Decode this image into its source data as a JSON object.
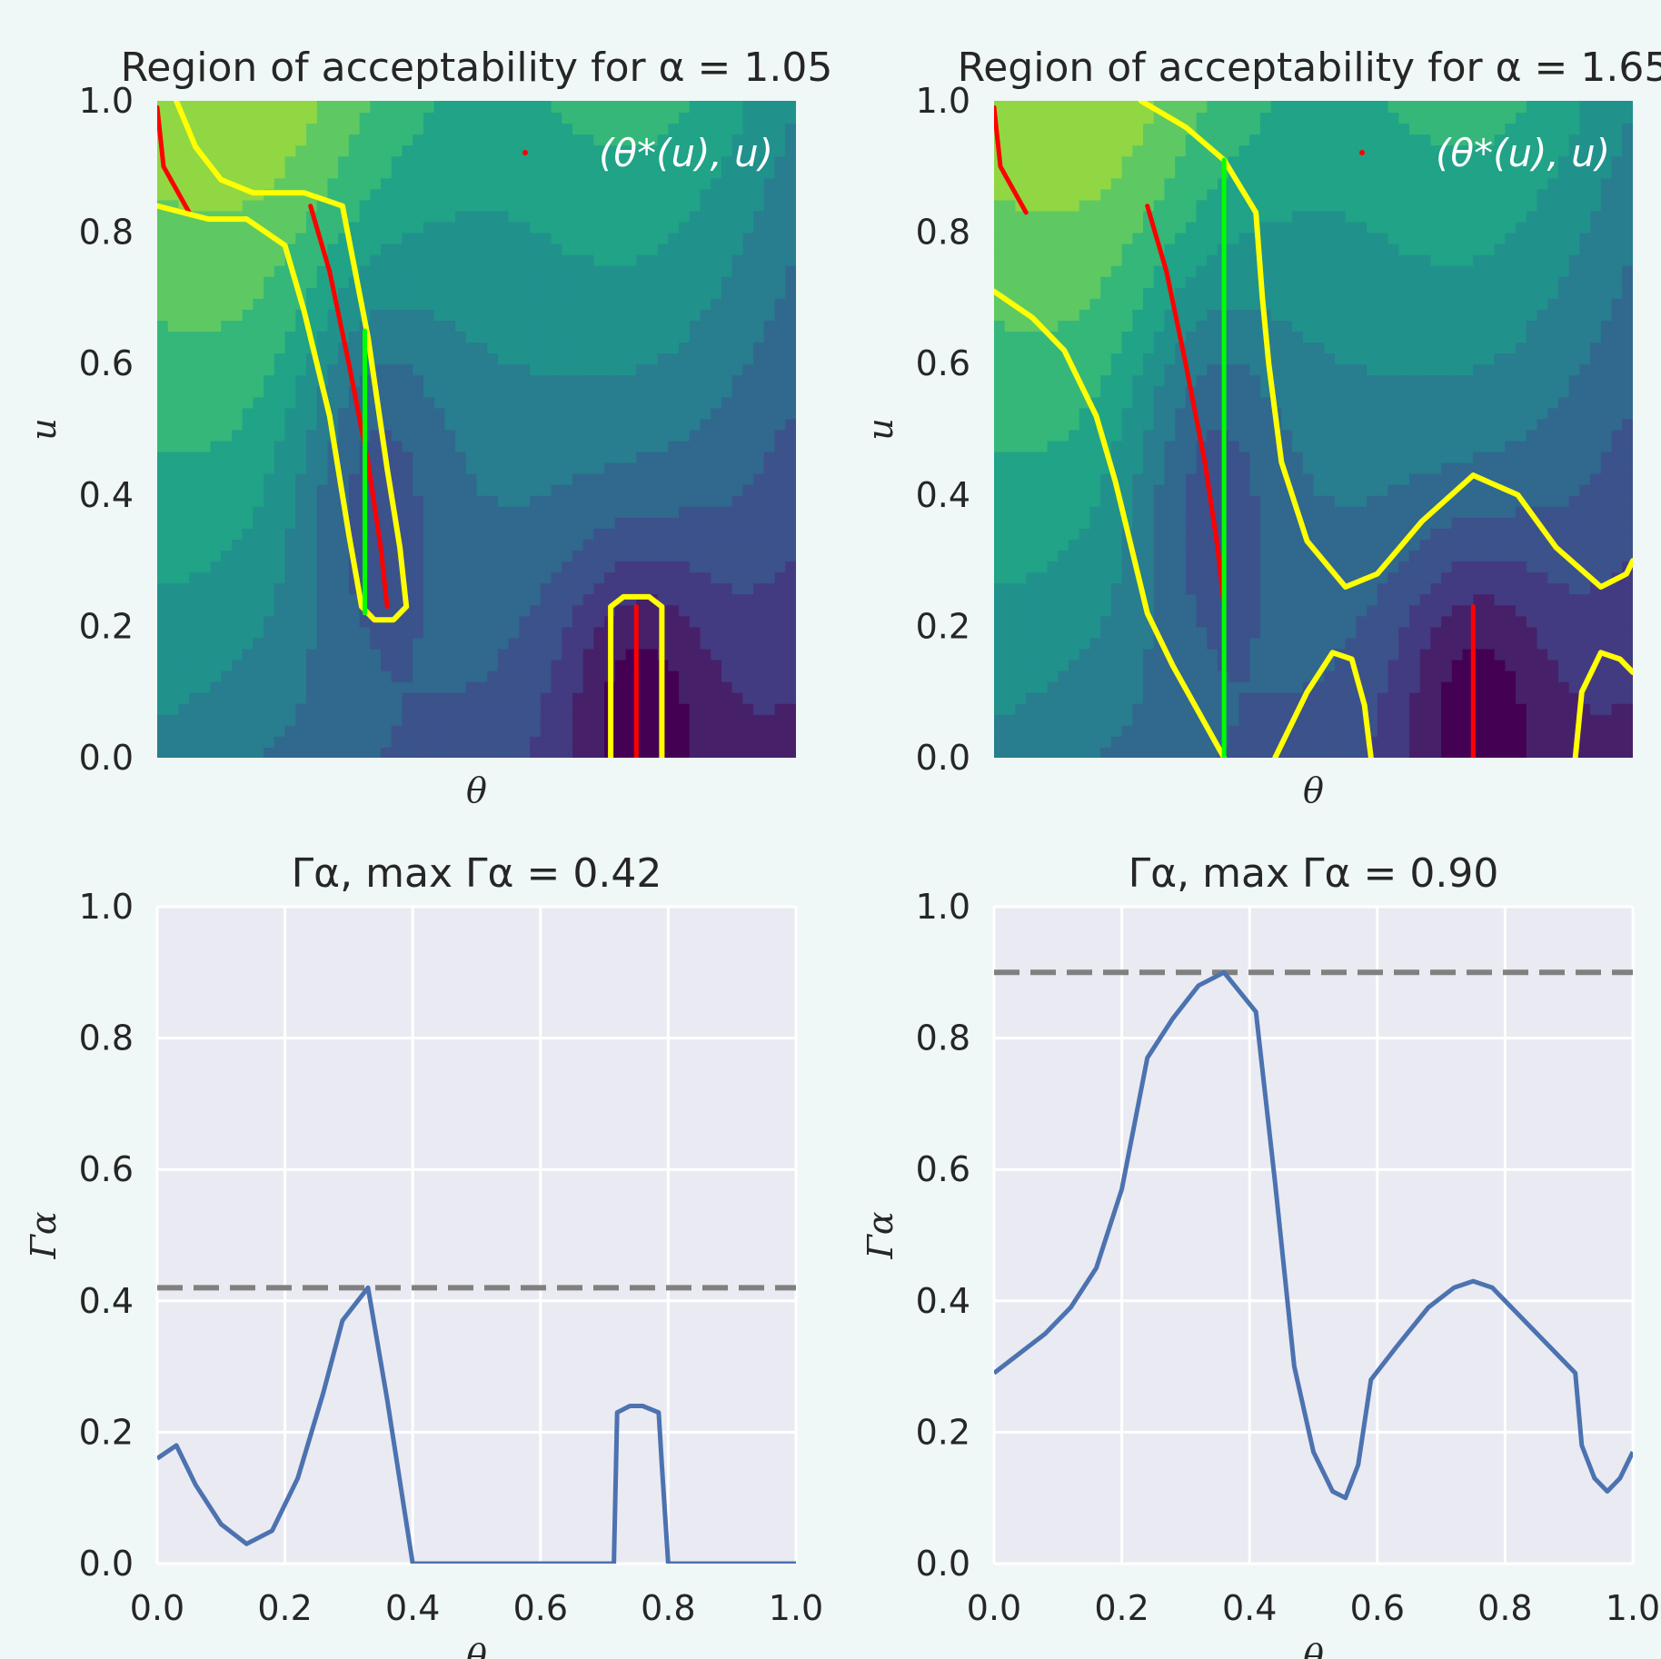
{
  "chart_data": [
    {
      "type": "contour",
      "title": "Region of acceptability for α = 1.05",
      "xlabel": "θ",
      "ylabel": "u",
      "xlim": [
        0,
        1
      ],
      "ylim": [
        0,
        1
      ],
      "yticks": [
        "0.0",
        "0.2",
        "0.4",
        "0.6",
        "0.8",
        "1.0"
      ],
      "xticks_visible": false,
      "colormap": "viridis",
      "annotation": "(θ*(u), u)",
      "alpha": 1.05,
      "series": [
        {
          "color": "#ff0000",
          "points": [
            [
              0.0,
              0.99
            ],
            [
              0.01,
              0.9
            ],
            [
              0.05,
              0.83
            ]
          ]
        },
        {
          "color": "#ff0000",
          "points": [
            [
              0.24,
              0.84
            ],
            [
              0.27,
              0.74
            ],
            [
              0.3,
              0.6
            ],
            [
              0.33,
              0.45
            ],
            [
              0.35,
              0.32
            ],
            [
              0.36,
              0.23
            ]
          ]
        },
        {
          "color": "#ff0000",
          "points": [
            [
              0.75,
              0.23
            ],
            [
              0.75,
              0.0
            ]
          ]
        },
        {
          "color": "#ffff00",
          "points": [
            [
              0.03,
              1.0
            ],
            [
              0.06,
              0.93
            ],
            [
              0.1,
              0.88
            ],
            [
              0.15,
              0.86
            ],
            [
              0.23,
              0.86
            ],
            [
              0.29,
              0.84
            ],
            [
              0.33,
              0.64
            ],
            [
              0.36,
              0.44
            ],
            [
              0.38,
              0.32
            ],
            [
              0.39,
              0.23
            ],
            [
              0.37,
              0.21
            ],
            [
              0.34,
              0.21
            ],
            [
              0.32,
              0.23
            ],
            [
              0.3,
              0.34
            ],
            [
              0.27,
              0.52
            ],
            [
              0.23,
              0.68
            ],
            [
              0.2,
              0.78
            ],
            [
              0.14,
              0.82
            ],
            [
              0.08,
              0.82
            ],
            [
              0.0,
              0.84
            ]
          ]
        },
        {
          "color": "#ffff00",
          "points": [
            [
              0.71,
              0.0
            ],
            [
              0.71,
              0.23
            ],
            [
              0.73,
              0.245
            ],
            [
              0.77,
              0.245
            ],
            [
              0.79,
              0.23
            ],
            [
              0.79,
              0.0
            ]
          ]
        },
        {
          "color": "#00ff00",
          "points": [
            [
              0.325,
              0.65
            ],
            [
              0.325,
              0.22
            ]
          ]
        }
      ]
    },
    {
      "type": "contour",
      "title": "Region of acceptability for α = 1.65",
      "xlabel": "θ",
      "ylabel": "u",
      "xlim": [
        0,
        1
      ],
      "ylim": [
        0,
        1
      ],
      "yticks": [
        "0.0",
        "0.2",
        "0.4",
        "0.6",
        "0.8",
        "1.0"
      ],
      "xticks_visible": false,
      "colormap": "viridis",
      "annotation": "(θ*(u), u)",
      "alpha": 1.65,
      "series": [
        {
          "color": "#ff0000",
          "points": [
            [
              0.0,
              0.99
            ],
            [
              0.01,
              0.9
            ],
            [
              0.05,
              0.83
            ]
          ]
        },
        {
          "color": "#ff0000",
          "points": [
            [
              0.24,
              0.84
            ],
            [
              0.27,
              0.74
            ],
            [
              0.3,
              0.6
            ],
            [
              0.33,
              0.45
            ],
            [
              0.35,
              0.32
            ],
            [
              0.36,
              0.23
            ]
          ]
        },
        {
          "color": "#ff0000",
          "points": [
            [
              0.75,
              0.23
            ],
            [
              0.75,
              0.0
            ]
          ]
        },
        {
          "color": "#ffff00",
          "points": [
            [
              0.23,
              1.0
            ],
            [
              0.3,
              0.96
            ],
            [
              0.36,
              0.91
            ],
            [
              0.41,
              0.83
            ],
            [
              0.42,
              0.7
            ],
            [
              0.43,
              0.6
            ],
            [
              0.45,
              0.45
            ],
            [
              0.49,
              0.33
            ],
            [
              0.55,
              0.26
            ],
            [
              0.6,
              0.28
            ],
            [
              0.67,
              0.36
            ],
            [
              0.75,
              0.43
            ],
            [
              0.82,
              0.4
            ],
            [
              0.88,
              0.32
            ],
            [
              0.95,
              0.26
            ],
            [
              0.99,
              0.28
            ],
            [
              1.0,
              0.3
            ]
          ]
        },
        {
          "color": "#ffff00",
          "points": [
            [
              0.0,
              0.71
            ],
            [
              0.06,
              0.67
            ],
            [
              0.11,
              0.62
            ],
            [
              0.16,
              0.52
            ],
            [
              0.19,
              0.42
            ],
            [
              0.22,
              0.3
            ],
            [
              0.24,
              0.22
            ],
            [
              0.28,
              0.14
            ],
            [
              0.32,
              0.07
            ],
            [
              0.36,
              0.0
            ]
          ]
        },
        {
          "color": "#ffff00",
          "points": [
            [
              0.44,
              0.0
            ],
            [
              0.49,
              0.1
            ],
            [
              0.53,
              0.16
            ],
            [
              0.56,
              0.15
            ],
            [
              0.58,
              0.08
            ],
            [
              0.59,
              0.0
            ]
          ]
        },
        {
          "color": "#ffff00",
          "points": [
            [
              0.91,
              0.0
            ],
            [
              0.92,
              0.1
            ],
            [
              0.95,
              0.16
            ],
            [
              0.98,
              0.15
            ],
            [
              1.0,
              0.13
            ]
          ]
        },
        {
          "color": "#00ff00",
          "points": [
            [
              0.36,
              0.91
            ],
            [
              0.36,
              0.0
            ]
          ]
        }
      ]
    },
    {
      "type": "line",
      "title": "Γα, max Γα = 0.42",
      "xlabel": "θ",
      "ylabel": "Γα",
      "xlim": [
        0,
        1
      ],
      "ylim": [
        0,
        1
      ],
      "xticks": [
        "0.0",
        "0.2",
        "0.4",
        "0.6",
        "0.8",
        "1.0"
      ],
      "yticks": [
        "0.0",
        "0.2",
        "0.4",
        "0.6",
        "0.8",
        "1.0"
      ],
      "grid": true,
      "hline": 0.42,
      "series": [
        {
          "color": "#4c72b0",
          "x": [
            0.0,
            0.03,
            0.06,
            0.1,
            0.14,
            0.18,
            0.22,
            0.26,
            0.29,
            0.33,
            0.36,
            0.4,
            0.6,
            0.715,
            0.72,
            0.74,
            0.76,
            0.785,
            0.79,
            0.8,
            1.0
          ],
          "y": [
            0.16,
            0.18,
            0.12,
            0.06,
            0.03,
            0.05,
            0.13,
            0.26,
            0.37,
            0.42,
            0.25,
            0.0,
            0.0,
            0.0,
            0.23,
            0.24,
            0.24,
            0.23,
            0.15,
            0.0,
            0.0
          ]
        }
      ]
    },
    {
      "type": "line",
      "title": "Γα, max Γα = 0.90",
      "xlabel": "θ",
      "ylabel": "Γα",
      "xlim": [
        0,
        1
      ],
      "ylim": [
        0,
        1
      ],
      "xticks": [
        "0.0",
        "0.2",
        "0.4",
        "0.6",
        "0.8",
        "1.0"
      ],
      "yticks": [
        "0.0",
        "0.2",
        "0.4",
        "0.6",
        "0.8",
        "1.0"
      ],
      "grid": true,
      "hline": 0.9,
      "series": [
        {
          "color": "#4c72b0",
          "x": [
            0.0,
            0.04,
            0.08,
            0.12,
            0.16,
            0.2,
            0.24,
            0.28,
            0.32,
            0.36,
            0.41,
            0.44,
            0.47,
            0.5,
            0.53,
            0.55,
            0.57,
            0.59,
            0.63,
            0.68,
            0.72,
            0.75,
            0.78,
            0.82,
            0.87,
            0.91,
            0.92,
            0.94,
            0.96,
            0.98,
            1.0
          ],
          "y": [
            0.29,
            0.32,
            0.35,
            0.39,
            0.45,
            0.57,
            0.77,
            0.83,
            0.88,
            0.9,
            0.84,
            0.58,
            0.3,
            0.17,
            0.11,
            0.1,
            0.15,
            0.28,
            0.33,
            0.39,
            0.42,
            0.43,
            0.42,
            0.38,
            0.33,
            0.29,
            0.18,
            0.13,
            0.11,
            0.13,
            0.17
          ]
        }
      ]
    }
  ]
}
